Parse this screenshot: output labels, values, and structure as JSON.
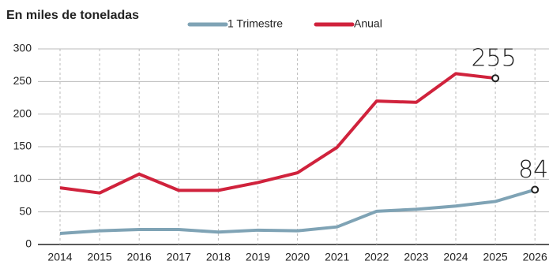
{
  "chart_data": {
    "type": "line",
    "title": "En miles de toneladas",
    "categories": [
      "2014",
      "2015",
      "2016",
      "2017",
      "2018",
      "2019",
      "2020",
      "2021",
      "2022",
      "2023",
      "2024",
      "2025",
      "2026"
    ],
    "series": [
      {
        "name": "1 Trimestre",
        "color": "#7fa3b5",
        "values": [
          17,
          21,
          23,
          23,
          19,
          22,
          21,
          27,
          51,
          54,
          59,
          66,
          84
        ]
      },
      {
        "name": "Anual",
        "color": "#d0223c",
        "values": [
          87,
          79,
          108,
          83,
          83,
          95,
          110,
          149,
          220,
          218,
          262,
          255,
          null
        ]
      }
    ],
    "ylim": [
      0,
      300
    ],
    "yticks": [
      0,
      50,
      100,
      150,
      200,
      250,
      300
    ],
    "grid": true
  }
}
